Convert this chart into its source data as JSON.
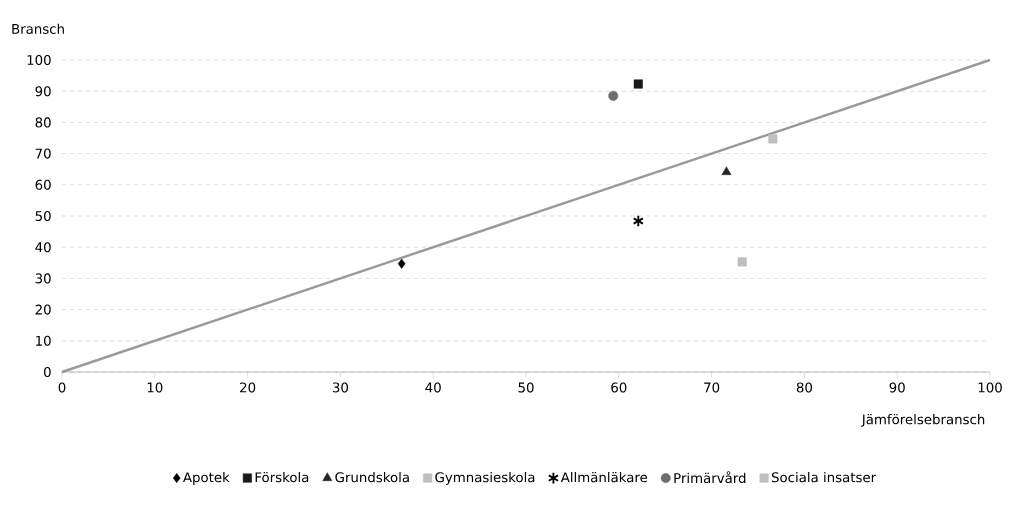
{
  "chart_data": {
    "type": "scatter",
    "xlabel": "Jämförelsebransch",
    "ylabel": "Bransch",
    "xlim": [
      0,
      100
    ],
    "ylim": [
      0,
      100
    ],
    "xticks": [
      0,
      10,
      20,
      30,
      40,
      50,
      60,
      70,
      80,
      90,
      100
    ],
    "yticks": [
      0,
      10,
      20,
      30,
      40,
      50,
      60,
      70,
      80,
      90,
      100
    ],
    "grid": "y",
    "legend": "bottom",
    "series": [
      {
        "name": "Apotek",
        "color": "#000000",
        "marker": "diamond",
        "x": [
          36.6
        ],
        "values": [
          34.7
        ]
      },
      {
        "name": "Förskola",
        "color": "#1a1a1a",
        "marker": "square",
        "x": [
          62.1
        ],
        "values": [
          92.3
        ]
      },
      {
        "name": "Grundskola",
        "color": "#262626",
        "marker": "triangle",
        "x": [
          71.6
        ],
        "values": [
          64.1
        ]
      },
      {
        "name": "Gymnasieskola",
        "color": "#bfbfbf",
        "marker": "square",
        "x": [
          73.3
        ],
        "values": [
          35.3
        ]
      },
      {
        "name": "Allmänläkare",
        "color": "#000000",
        "marker": "cross",
        "x": [
          62.1
        ],
        "values": [
          48.4
        ]
      },
      {
        "name": "Primärvård",
        "color": "#6e6e6e",
        "marker": "circle",
        "x": [
          59.4
        ],
        "values": [
          88.5
        ]
      },
      {
        "name": "Sociala insatser",
        "color": "#c0c0c0",
        "marker": "square",
        "x": [
          76.6
        ],
        "values": [
          74.7
        ]
      },
      {
        "type": "line",
        "color": "#999999",
        "marker": "none",
        "x": [
          0,
          100
        ],
        "values": [
          0,
          100
        ]
      }
    ]
  }
}
